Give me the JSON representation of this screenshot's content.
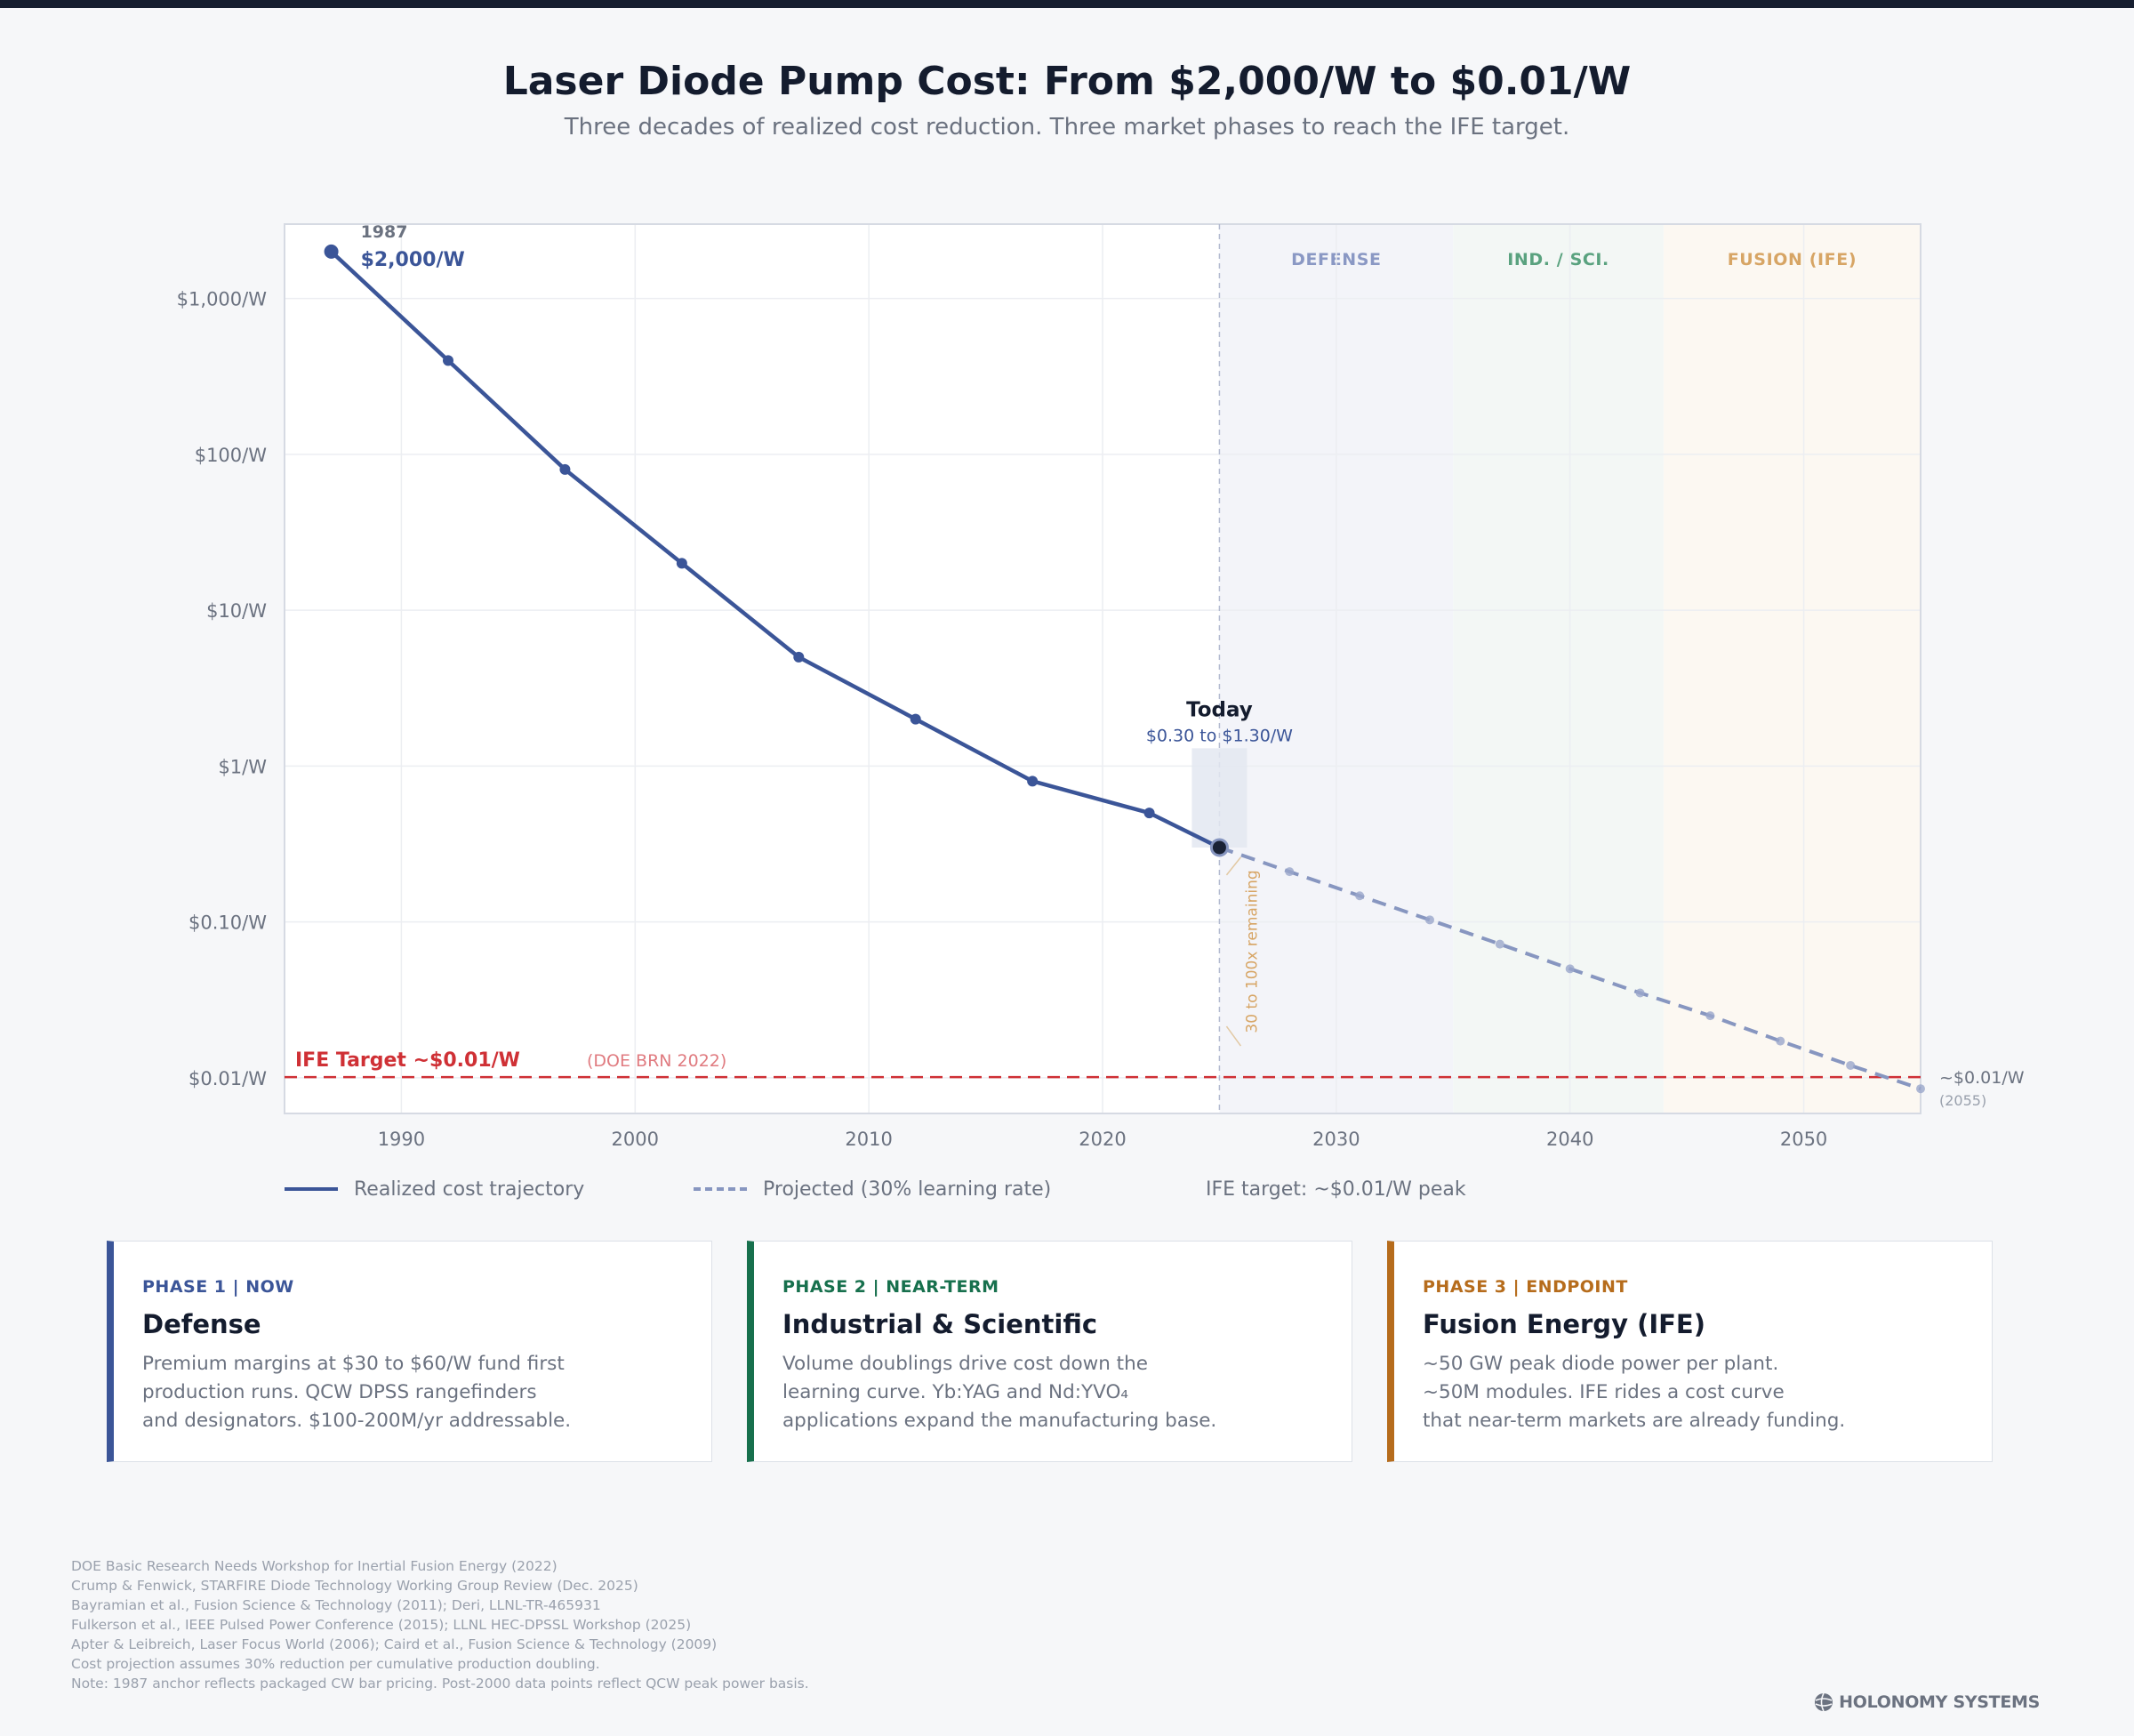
{
  "title": "Laser Diode Pump Cost: From $2,000/W to $0.01/W",
  "subtitle": "Three decades of realized cost reduction. Three market phases to reach the IFE target.",
  "chart_data": {
    "type": "line",
    "y_scale": "log",
    "xlim": [
      1985,
      2055
    ],
    "ylim": [
      0.0059,
      3000
    ],
    "x_ticks": [
      1990,
      2000,
      2010,
      2020,
      2030,
      2040,
      2050
    ],
    "x_tick_labels": [
      "1990",
      "2000",
      "2010",
      "2020",
      "2030",
      "2040",
      "2050"
    ],
    "y_ticks": [
      0.01,
      0.1,
      1,
      10,
      100,
      1000
    ],
    "y_tick_labels": [
      "$0.01/W",
      "$0.10/W",
      "$1/W",
      "$10/W",
      "$100/W",
      "$1,000/W"
    ],
    "grid": true,
    "series": [
      {
        "name": "Realized cost trajectory",
        "style": "solid",
        "color": "#3b5598",
        "x": [
          1987,
          1992,
          1997,
          2002,
          2007,
          2012,
          2017,
          2022,
          2025
        ],
        "y": [
          2000,
          400,
          80,
          20,
          5,
          2,
          0.8,
          0.5,
          0.3
        ]
      },
      {
        "name": "Projected (30% learning rate)",
        "style": "dashed",
        "color": "#8796c0",
        "x": [
          2025,
          2028,
          2031,
          2034,
          2037,
          2040,
          2043,
          2046,
          2049,
          2052,
          2055
        ],
        "y": [
          0.3,
          0.21,
          0.147,
          0.103,
          0.072,
          0.05,
          0.035,
          0.025,
          0.0172,
          0.012,
          0.0085
        ]
      }
    ],
    "target_line": {
      "label": "IFE Target ~$0.01/W",
      "source": "(DOE BRN 2022)",
      "y": 0.0101,
      "color": "#cf3035"
    },
    "phases": [
      {
        "label": "DEFENSE",
        "x_start": 2025,
        "x_end": 2035,
        "color": "#8a98c4",
        "fill": "#f3f4f9"
      },
      {
        "label": "IND. / SCI.",
        "x_start": 2035,
        "x_end": 2044,
        "color": "#5aa27f",
        "fill": "#f3f7f5"
      },
      {
        "label": "FUSION (IFE)",
        "x_start": 2044,
        "x_end": 2055,
        "color": "#d7a565",
        "fill": "#fcf8f2"
      }
    ],
    "annotations": {
      "start_year": "1987",
      "start_value": "$2,000/W",
      "today_label": "Today",
      "today_range": "$0.30 to $1.30/W",
      "today_range_low": 0.3,
      "today_range_high": 1.3,
      "today_year": 2025,
      "remaining": "30 to 100x remaining",
      "end_value": "~$0.01/W",
      "end_year": "(2055)"
    }
  },
  "legend": {
    "realized": "Realized cost trajectory",
    "projected": "Projected (30% learning rate)",
    "target": "IFE target: ~$0.01/W peak"
  },
  "phases": [
    {
      "tag": "PHASE 1 | NOW",
      "title": "Defense",
      "color": "#3b5598",
      "lines": [
        "Premium margins at $30 to $60/W fund first",
        "production runs. QCW DPSS rangefinders",
        "and designators. $100-200M/yr addressable."
      ]
    },
    {
      "tag": "PHASE 2 | NEAR-TERM",
      "title": "Industrial & Scientific",
      "color": "#17704d",
      "lines": [
        "Volume doublings drive cost down the",
        "learning curve. Yb:YAG and Nd:YVO₄",
        "applications expand the manufacturing base."
      ]
    },
    {
      "tag": "PHASE 3 | ENDPOINT",
      "title": "Fusion Energy (IFE)",
      "color": "#b66c1c",
      "lines": [
        "~50 GW peak diode power per plant.",
        "~50M modules. IFE rides a cost curve",
        "that near-term markets are already funding."
      ]
    }
  ],
  "references": [
    "DOE Basic Research Needs Workshop for Inertial Fusion Energy (2022)",
    "Crump & Fenwick, STARFIRE Diode Technology Working Group Review (Dec. 2025)",
    "Bayramian et al., Fusion Science & Technology (2011); Deri, LLNL-TR-465931",
    "Fulkerson et al., IEEE Pulsed Power Conference (2015); LLNL HEC-DPSSL Workshop (2025)",
    "Apter & Leibreich, Laser Focus World (2006); Caird et al., Fusion Science & Technology (2009)",
    "Cost projection assumes 30% reduction per cumulative production doubling.",
    "Note: 1987 anchor reflects packaged CW bar pricing. Post-2000 data points reflect QCW peak power basis."
  ],
  "brand": "HOLONOMY SYSTEMS"
}
